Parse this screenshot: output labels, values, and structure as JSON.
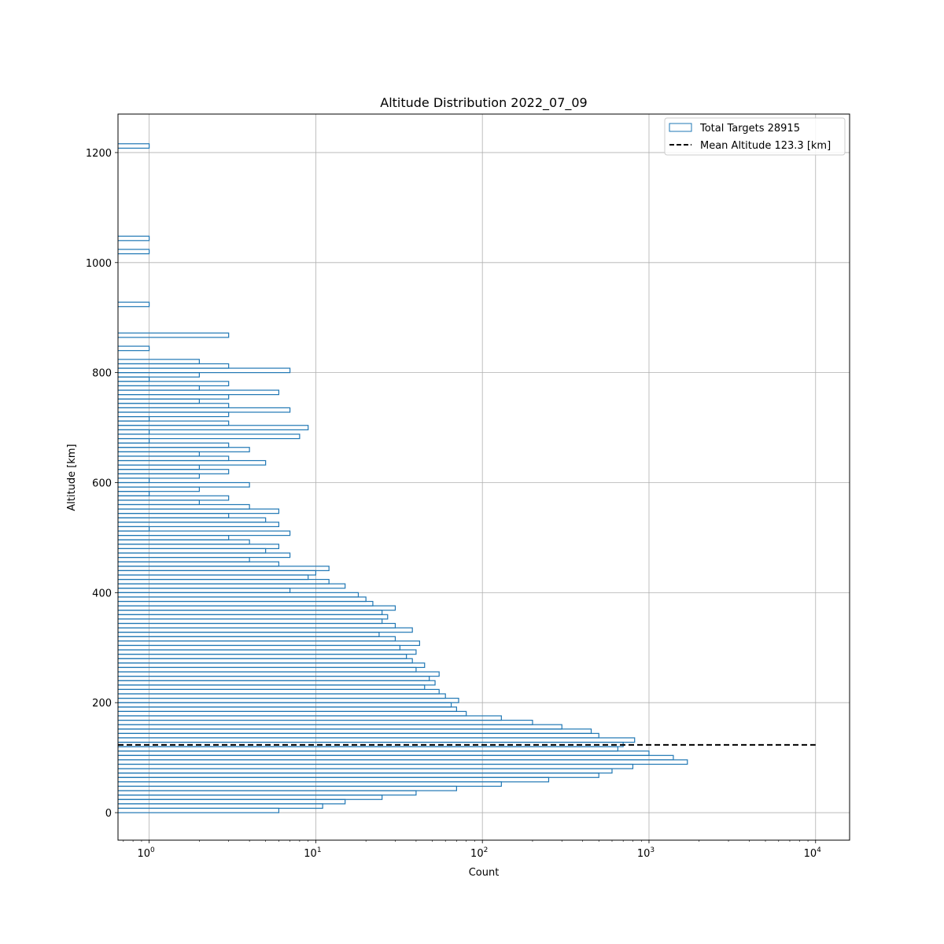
{
  "chart_data": {
    "type": "histogram-step",
    "orientation": "horizontal",
    "title": "Altitude Distribution 2022_07_09",
    "xlabel": "Count",
    "ylabel": "Altitude [km]",
    "xscale": "log",
    "xlim": [
      0.65,
      16000
    ],
    "ylim": [
      -50,
      1270
    ],
    "grid": true,
    "legend_position": "upper right",
    "x_ticks": [
      {
        "value": 1,
        "base": "10",
        "exp": "0"
      },
      {
        "value": 10,
        "base": "10",
        "exp": "1"
      },
      {
        "value": 100,
        "base": "10",
        "exp": "2"
      },
      {
        "value": 1000,
        "base": "10",
        "exp": "3"
      },
      {
        "value": 10000,
        "base": "10",
        "exp": "4"
      }
    ],
    "y_ticks": [
      0,
      200,
      400,
      600,
      800,
      1000,
      1200
    ],
    "series": [
      {
        "name": "Total Targets 28915",
        "color": "#1f77b4",
        "bin_width": 8,
        "bins": [
          [
            0,
            6
          ],
          [
            8,
            11
          ],
          [
            16,
            15
          ],
          [
            24,
            25
          ],
          [
            32,
            40
          ],
          [
            40,
            70
          ],
          [
            48,
            130
          ],
          [
            56,
            250
          ],
          [
            64,
            500
          ],
          [
            72,
            600
          ],
          [
            80,
            800
          ],
          [
            88,
            1700
          ],
          [
            96,
            1400
          ],
          [
            104,
            1000
          ],
          [
            112,
            650
          ],
          [
            120,
            700
          ],
          [
            128,
            820
          ],
          [
            136,
            500
          ],
          [
            144,
            450
          ],
          [
            152,
            300
          ],
          [
            160,
            200
          ],
          [
            168,
            130
          ],
          [
            176,
            80
          ],
          [
            184,
            70
          ],
          [
            192,
            65
          ],
          [
            200,
            72
          ],
          [
            208,
            60
          ],
          [
            216,
            55
          ],
          [
            224,
            45
          ],
          [
            232,
            52
          ],
          [
            240,
            48
          ],
          [
            248,
            55
          ],
          [
            256,
            40
          ],
          [
            264,
            45
          ],
          [
            272,
            38
          ],
          [
            280,
            35
          ],
          [
            288,
            40
          ],
          [
            296,
            32
          ],
          [
            304,
            42
          ],
          [
            312,
            30
          ],
          [
            320,
            24
          ],
          [
            328,
            38
          ],
          [
            336,
            30
          ],
          [
            344,
            25
          ],
          [
            352,
            27
          ],
          [
            360,
            25
          ],
          [
            368,
            30
          ],
          [
            376,
            22
          ],
          [
            384,
            20
          ],
          [
            392,
            18
          ],
          [
            400,
            7
          ],
          [
            408,
            15
          ],
          [
            416,
            12
          ],
          [
            424,
            9
          ],
          [
            432,
            10
          ],
          [
            440,
            12
          ],
          [
            448,
            6
          ],
          [
            456,
            4
          ],
          [
            464,
            7
          ],
          [
            472,
            5
          ],
          [
            480,
            6
          ],
          [
            488,
            4
          ],
          [
            496,
            3
          ],
          [
            504,
            7
          ],
          [
            512,
            1
          ],
          [
            520,
            6
          ],
          [
            528,
            5
          ],
          [
            536,
            3
          ],
          [
            544,
            6
          ],
          [
            552,
            4
          ],
          [
            560,
            2
          ],
          [
            568,
            3
          ],
          [
            576,
            1
          ],
          [
            584,
            2
          ],
          [
            592,
            4
          ],
          [
            600,
            1
          ],
          [
            608,
            2
          ],
          [
            616,
            3
          ],
          [
            624,
            2
          ],
          [
            632,
            5
          ],
          [
            640,
            3
          ],
          [
            648,
            2
          ],
          [
            656,
            4
          ],
          [
            664,
            3
          ],
          [
            672,
            1
          ],
          [
            680,
            8
          ],
          [
            688,
            1
          ],
          [
            696,
            9
          ],
          [
            704,
            3
          ],
          [
            712,
            1
          ],
          [
            720,
            3
          ],
          [
            728,
            7
          ],
          [
            736,
            3
          ],
          [
            744,
            2
          ],
          [
            752,
            3
          ],
          [
            760,
            6
          ],
          [
            768,
            2
          ],
          [
            776,
            3
          ],
          [
            784,
            1
          ],
          [
            792,
            2
          ],
          [
            800,
            7
          ],
          [
            808,
            3
          ],
          [
            816,
            2
          ],
          [
            824,
            0
          ],
          [
            832,
            0
          ],
          [
            840,
            1
          ],
          [
            848,
            0
          ],
          [
            856,
            0
          ],
          [
            864,
            3
          ],
          [
            872,
            0
          ],
          [
            880,
            0
          ],
          [
            888,
            0
          ],
          [
            896,
            0
          ],
          [
            904,
            0
          ],
          [
            912,
            0
          ],
          [
            920,
            1
          ],
          [
            928,
            0
          ],
          [
            1008,
            0
          ],
          [
            1016,
            1
          ],
          [
            1024,
            0
          ],
          [
            1032,
            0
          ],
          [
            1040,
            1
          ],
          [
            1048,
            0
          ],
          [
            1200,
            0
          ],
          [
            1208,
            1
          ],
          [
            1216,
            0
          ]
        ]
      }
    ],
    "mean_line": {
      "name": "Mean Altitude 123.3 [km]",
      "y": 123.3,
      "x_range": [
        0.65,
        10000
      ],
      "style": "dashed",
      "color": "#000000"
    }
  }
}
